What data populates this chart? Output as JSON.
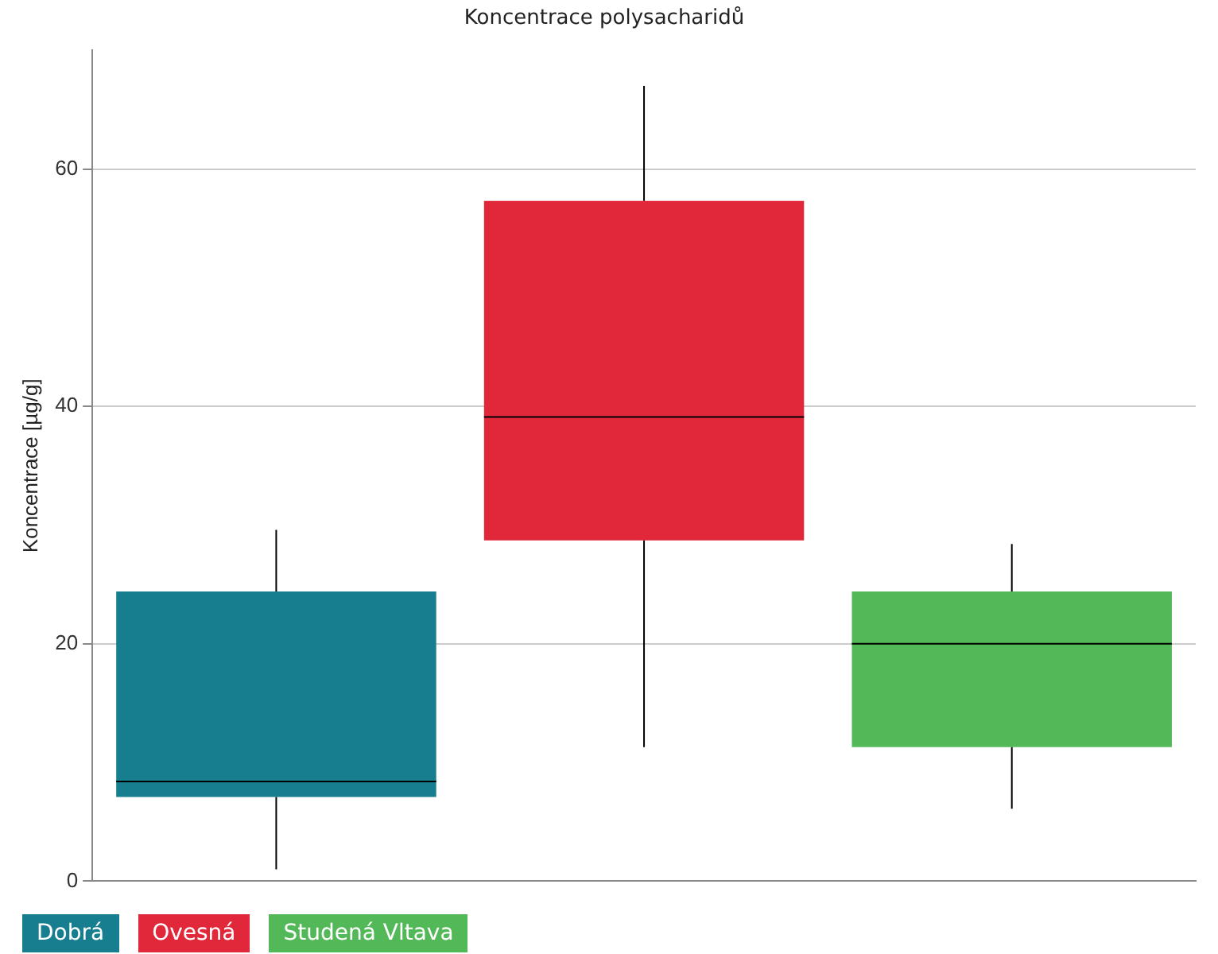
{
  "chart_data": {
    "type": "box",
    "title": "Koncentrace polysacharidů",
    "ylabel": "Koncentrace [µg/g]",
    "categories": [
      null,
      null,
      null
    ],
    "series": [
      {
        "name": "Dobrá",
        "color": "#167e8f",
        "boxes": [
          {
            "low": 1.0,
            "q1": 7.1,
            "median": 8.4,
            "q3": 24.4,
            "high": 29.6
          },
          null,
          null
        ]
      },
      {
        "name": "Ovesná",
        "color": "#e0283a",
        "boxes": [
          null,
          {
            "low": 11.3,
            "q1": 28.7,
            "median": 39.1,
            "q3": 57.3,
            "high": 67
          },
          null
        ]
      },
      {
        "name": "Studená Vltava",
        "color": "#53b958",
        "boxes": [
          null,
          null,
          {
            "low": 6.1,
            "q1": 11.3,
            "median": 20,
            "q3": 24.4,
            "high": 28.4
          }
        ]
      }
    ],
    "ylim": [
      0,
      70
    ],
    "yticks": [
      0,
      20,
      40,
      60
    ],
    "grid": "y",
    "legend": "bottom left",
    "tick_labels": "y"
  }
}
